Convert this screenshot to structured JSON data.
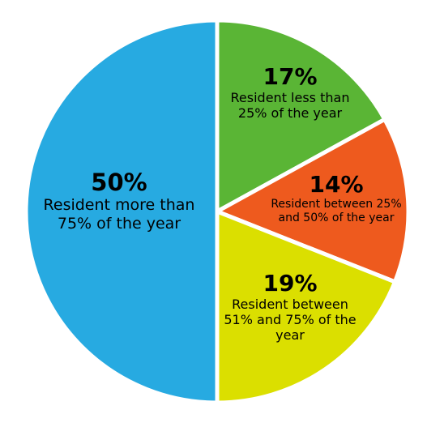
{
  "chart_data": {
    "type": "pie",
    "categories": [
      "Resident less than 25% of the year",
      "Resident between 25% and 50% of the year",
      "Resident between 51% and 75% of the year",
      "Resident more than 75% of the year"
    ],
    "values": [
      17,
      14,
      19,
      50
    ],
    "value_labels": [
      "17%",
      "14%",
      "19%",
      "50%"
    ],
    "colors": [
      "#5ab535",
      "#ee5a1e",
      "#dbdf00",
      "#27aae1"
    ]
  }
}
